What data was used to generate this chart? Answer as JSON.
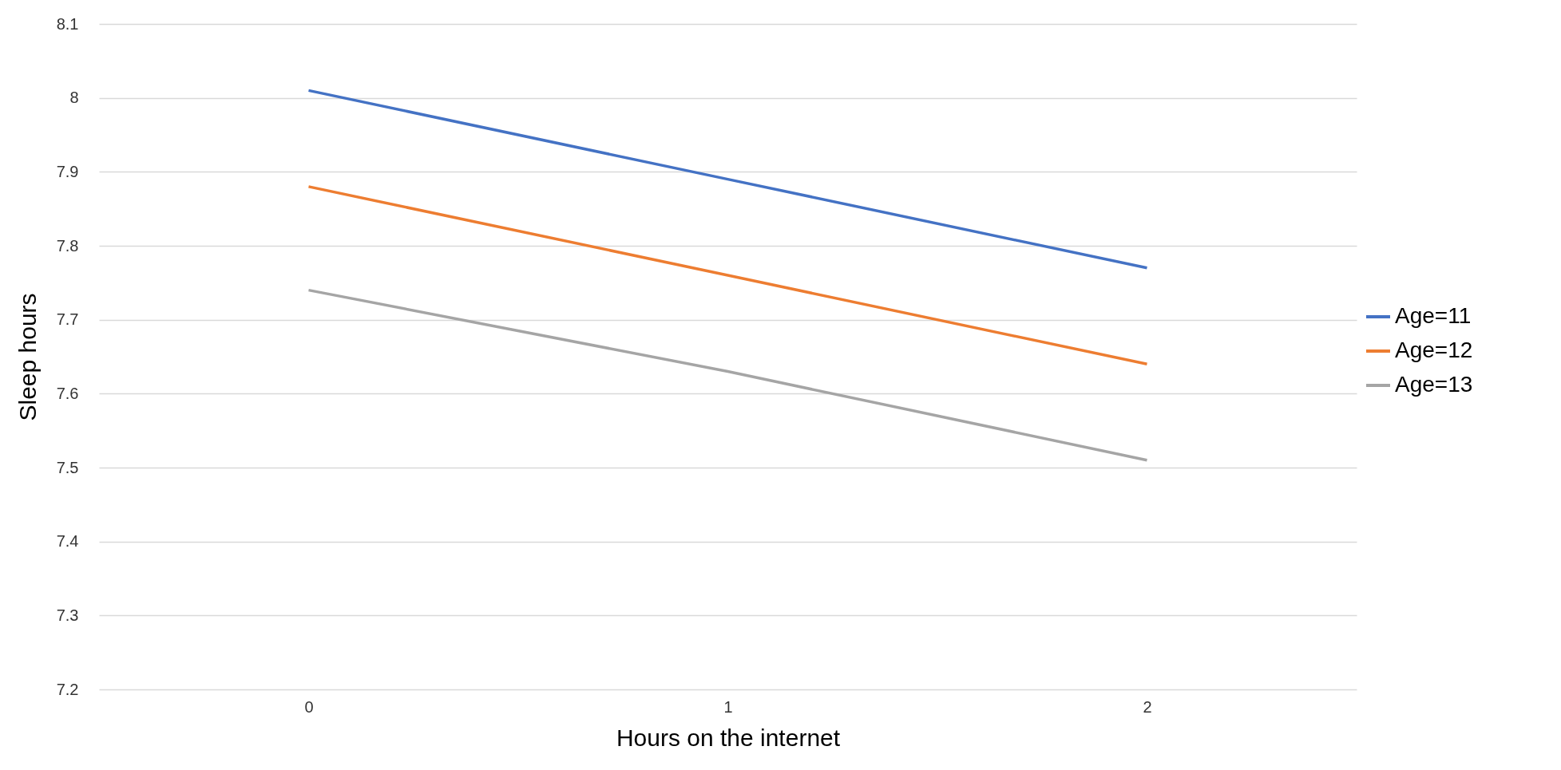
{
  "chart_data": {
    "type": "line",
    "xlabel": "Hours on the internet",
    "ylabel": "Sleep hours",
    "categories": [
      "0",
      "1",
      "2"
    ],
    "series": [
      {
        "name": "Age=11",
        "color": "#4472c4",
        "values": [
          8.01,
          7.89,
          7.77
        ]
      },
      {
        "name": "Age=12",
        "color": "#ed7d31",
        "values": [
          7.88,
          7.76,
          7.64
        ]
      },
      {
        "name": "Age=13",
        "color": "#a5a5a5",
        "values": [
          7.74,
          7.63,
          7.51
        ]
      }
    ],
    "ylim": [
      7.2,
      8.1
    ],
    "yticks": [
      7.2,
      7.3,
      7.4,
      7.5,
      7.6,
      7.7,
      7.8,
      7.9,
      8,
      8.1
    ],
    "grid": "y",
    "legend": "right"
  }
}
